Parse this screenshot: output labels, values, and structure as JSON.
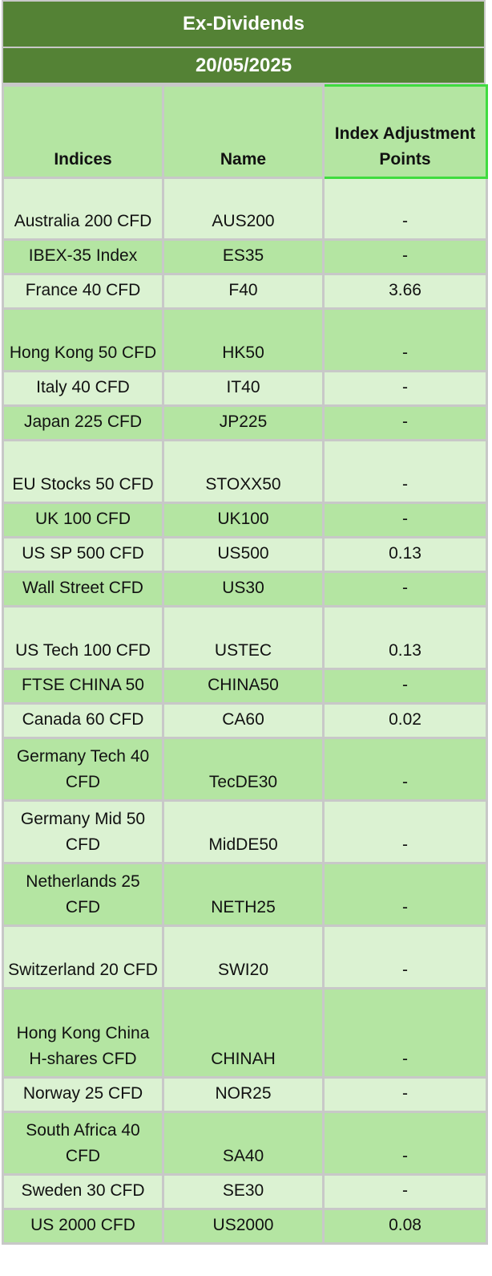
{
  "title": "Ex-Dividends",
  "date": "20/05/2025",
  "columns": [
    "Indices",
    "Name",
    "Index Adjustment Points"
  ],
  "rows": [
    {
      "index": "Australia 200 CFD",
      "name": "AUS200",
      "points": "-"
    },
    {
      "index": "IBEX-35 Index",
      "name": "ES35",
      "points": "-"
    },
    {
      "index": "France 40 CFD",
      "name": "F40",
      "points": "3.66"
    },
    {
      "index": "Hong Kong 50 CFD",
      "name": "HK50",
      "points": "-"
    },
    {
      "index": "Italy 40 CFD",
      "name": "IT40",
      "points": "-"
    },
    {
      "index": "Japan 225 CFD",
      "name": "JP225",
      "points": "-"
    },
    {
      "index": "EU Stocks 50 CFD",
      "name": "STOXX50",
      "points": "-"
    },
    {
      "index": "UK 100 CFD",
      "name": "UK100",
      "points": "-"
    },
    {
      "index": "US SP 500 CFD",
      "name": "US500",
      "points": "0.13"
    },
    {
      "index": "Wall Street CFD",
      "name": "US30",
      "points": "-"
    },
    {
      "index": "US Tech 100 CFD",
      "name": "USTEC",
      "points": "0.13"
    },
    {
      "index": "FTSE CHINA 50",
      "name": "CHINA50",
      "points": "-"
    },
    {
      "index": "Canada 60 CFD",
      "name": "CA60",
      "points": "0.02"
    },
    {
      "index": "Germany Tech 40 CFD",
      "name": "TecDE30",
      "points": "-"
    },
    {
      "index": "Germany Mid 50 CFD",
      "name": "MidDE50",
      "points": "-"
    },
    {
      "index": "Netherlands 25 CFD",
      "name": "NETH25",
      "points": "-"
    },
    {
      "index": "Switzerland 20 CFD",
      "name": "SWI20",
      "points": "-"
    },
    {
      "index": "Hong Kong China H-shares CFD",
      "name": "CHINAH",
      "points": "-"
    },
    {
      "index": "Norway 25 CFD",
      "name": "NOR25",
      "points": "-"
    },
    {
      "index": "South Africa 40 CFD",
      "name": "SA40",
      "points": "-"
    },
    {
      "index": "Sweden 30 CFD",
      "name": "SE30",
      "points": "-"
    },
    {
      "index": "US 2000 CFD",
      "name": "US2000",
      "points": "0.08"
    }
  ]
}
